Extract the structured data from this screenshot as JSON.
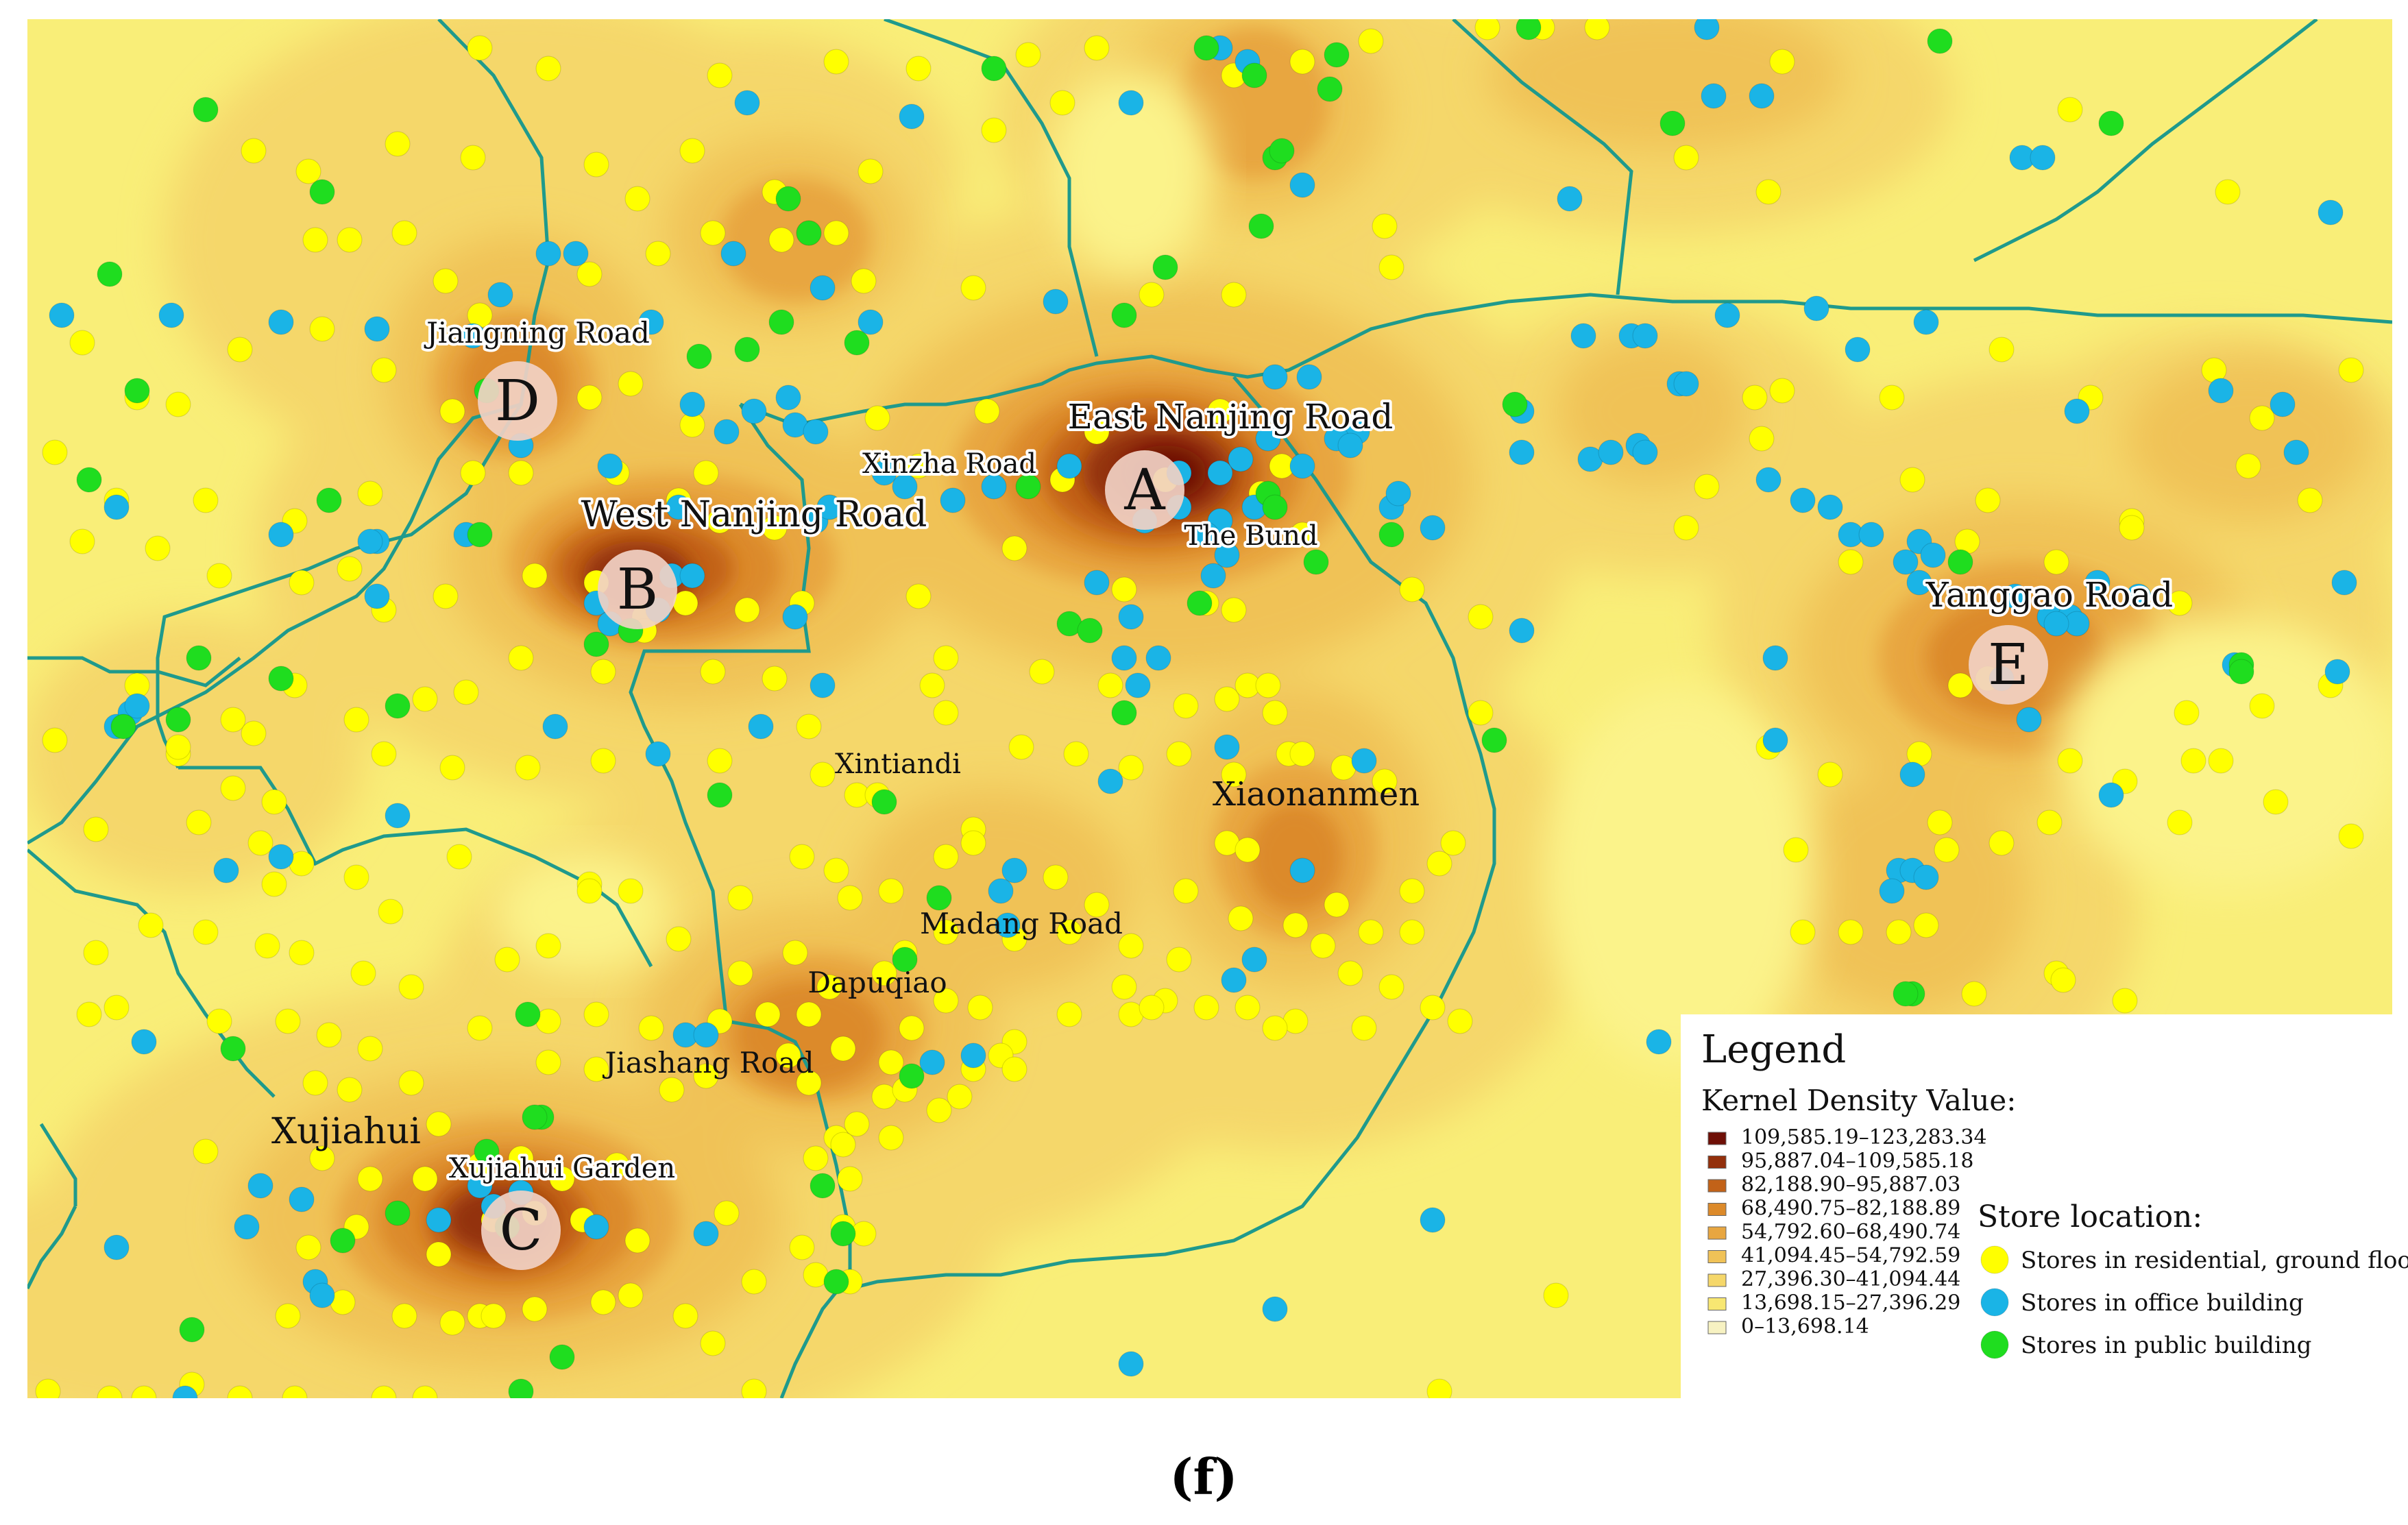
{
  "colors": {
    "background": "#f9ee78",
    "boundary": "#1f9a8c",
    "residential": "#ffff00",
    "office": "#1ab4e6",
    "public": "#1fdd1f",
    "density": [
      "#f7f2c2",
      "#f8e772",
      "#f5d76a",
      "#f0c257",
      "#e8a640",
      "#dc8a2a",
      "#c26218",
      "#93300c",
      "#6e0f06"
    ]
  },
  "hotspots": [
    {
      "letter": "A",
      "street": "East Nanjing Road"
    },
    {
      "letter": "B",
      "street": "West Nanjing Road"
    },
    {
      "letter": "C",
      "street": "Xujiahui Garden"
    },
    {
      "letter": "D",
      "street": "Jiangning Road"
    },
    {
      "letter": "E",
      "street": "Yanggao Road"
    }
  ],
  "places": [
    "Xinzha Road",
    "The Bund",
    "Xintiandi",
    "Xiaonanmen",
    "Madang Road",
    "Dapuqiao",
    "Jiashang Road",
    "Xujiahui"
  ],
  "legend": {
    "title": "Legend",
    "density_title": "Kernel Density Value:",
    "density_classes": [
      "109,585.19–123,283.34",
      "95,887.04–109,585.18",
      "82,188.90–95,887.03",
      "68,490.75–82,188.89",
      "54,792.60–68,490.74",
      "41,094.45–54,792.59",
      "27,396.30–41,094.44",
      "13,698.15–27,396.29",
      "0–13,698.14"
    ],
    "store_title": "Store location:",
    "store_types": [
      {
        "label": "Stores in residential, ground floor",
        "color": "#ffff00",
        "icon": "yellow-dot-icon"
      },
      {
        "label": "Stores in office building",
        "color": "#1ab4e6",
        "icon": "blue-dot-icon"
      },
      {
        "label": "Stores in public building",
        "color": "#1fdd1f",
        "icon": "green-dot-icon"
      }
    ]
  },
  "caption": "(f)"
}
